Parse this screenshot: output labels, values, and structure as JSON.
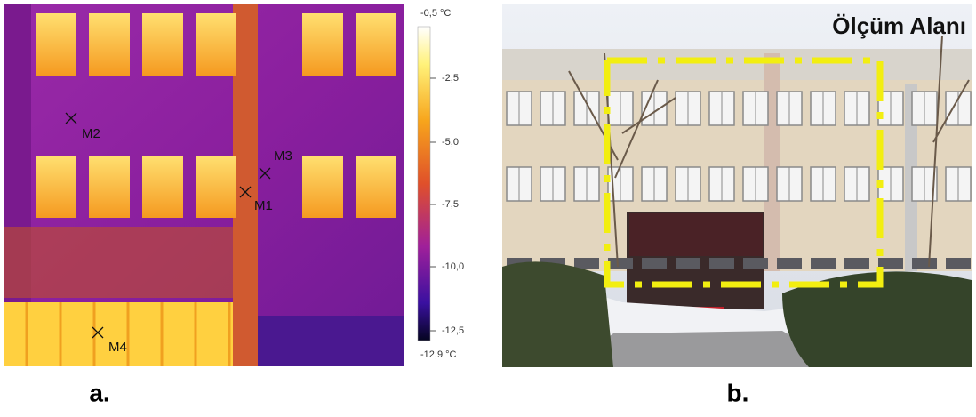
{
  "panel_a": {
    "colorbar": {
      "max_label": "-0,5 °C",
      "ticks": [
        "-2,5",
        "-5,0",
        "-7,5",
        "-10,0",
        "-12,5"
      ],
      "min_label": "-12,9 °C"
    },
    "markers": [
      "M1",
      "M2",
      "M3",
      "M4"
    ],
    "caption": "a."
  },
  "panel_b": {
    "label": "Ölçüm Alanı",
    "caption": "b."
  }
}
